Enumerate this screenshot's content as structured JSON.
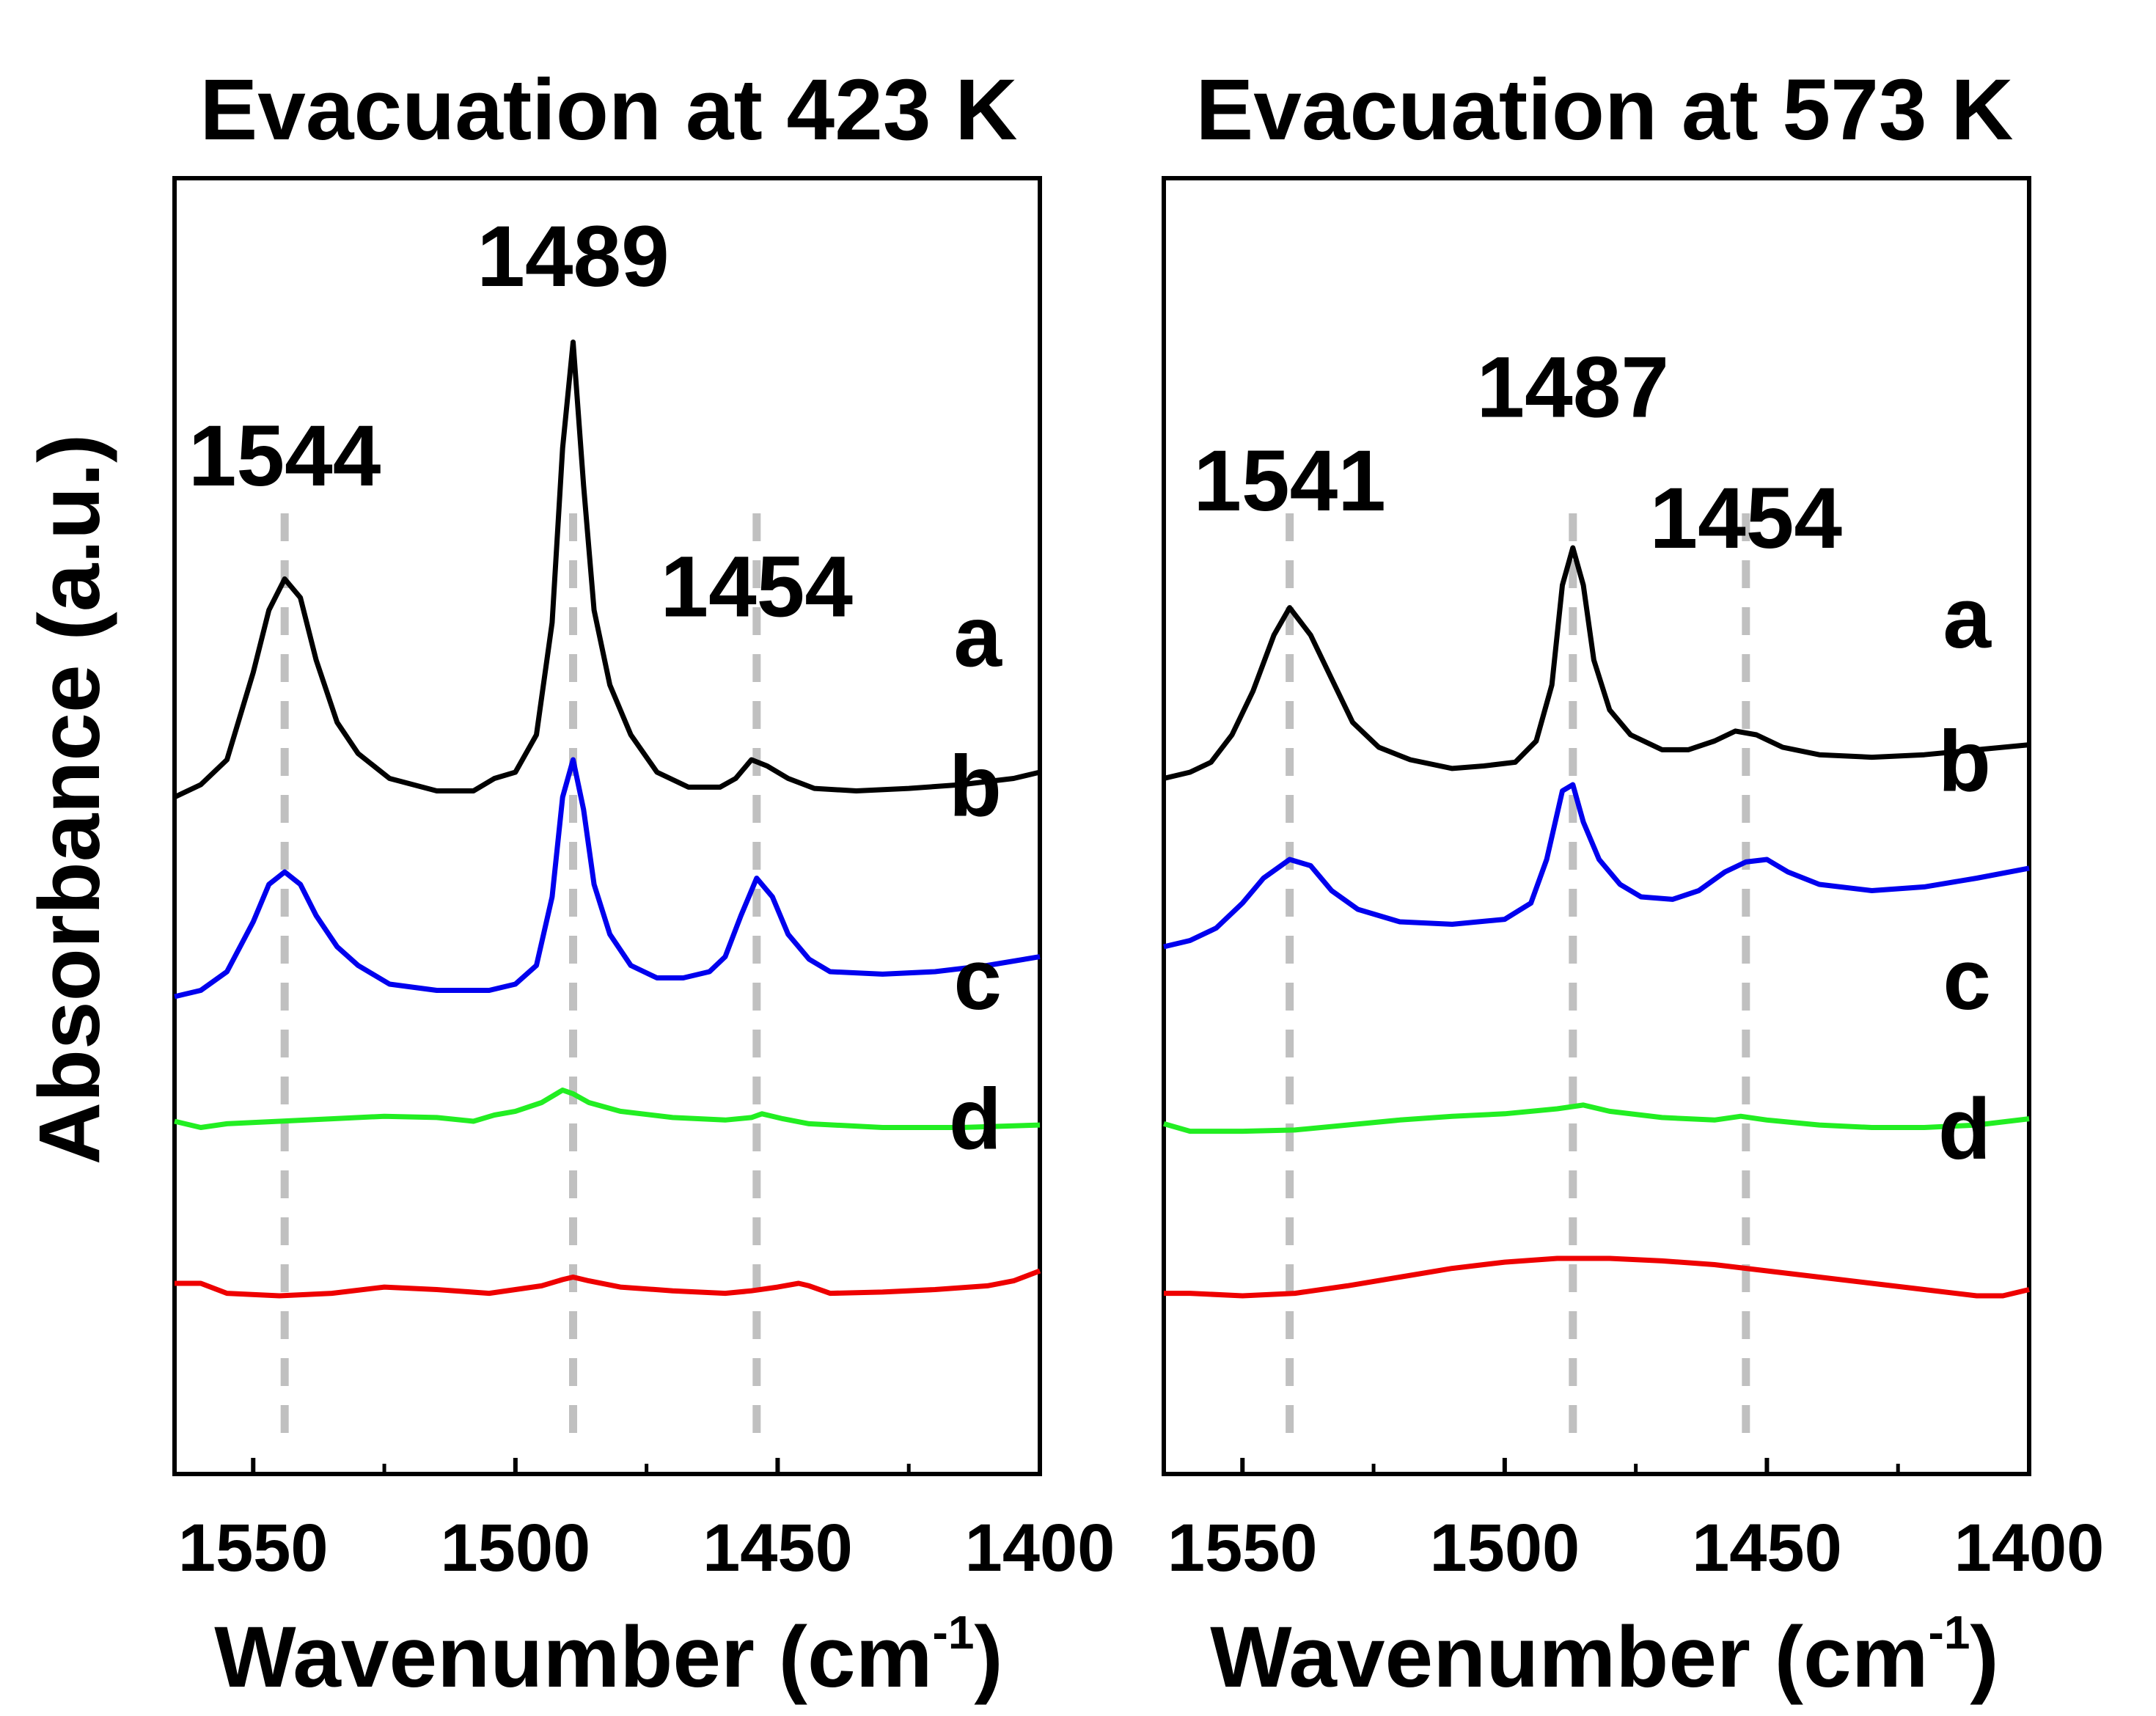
{
  "chart_data": [
    {
      "type": "line",
      "title": "Evacuation at 423 K",
      "xlabel": "Wavenumber (cm",
      "xlabel_sup": "-1",
      "xlabel_close": ")",
      "ylabel": "Absorbance (a.u.)",
      "xlim": [
        1565,
        1400
      ],
      "x_ticks": [
        "1550",
        "1500",
        "1450",
        "1400"
      ],
      "y_ticks_visible": false,
      "peak_labels": [
        {
          "text": "1544",
          "x": 1544,
          "y": 5.4
        },
        {
          "text": "1489",
          "x": 1489,
          "y": 7.0
        },
        {
          "text": "1454",
          "x": 1454,
          "y": 4.35
        }
      ],
      "reference_lines": [
        1544,
        1489,
        1454
      ],
      "series": [
        {
          "name": "a",
          "label": "a",
          "color": "#000000",
          "label_y": 3.95,
          "points": [
            [
              1565,
              2.9
            ],
            [
              1560,
              3.0
            ],
            [
              1555,
              3.2
            ],
            [
              1550,
              3.9
            ],
            [
              1547,
              4.4
            ],
            [
              1544,
              4.65
            ],
            [
              1541,
              4.5
            ],
            [
              1538,
              4.0
            ],
            [
              1534,
              3.5
            ],
            [
              1530,
              3.25
            ],
            [
              1524,
              3.05
            ],
            [
              1515,
              2.95
            ],
            [
              1508,
              2.95
            ],
            [
              1504,
              3.05
            ],
            [
              1500,
              3.1
            ],
            [
              1496,
              3.4
            ],
            [
              1493,
              4.3
            ],
            [
              1491,
              5.7
            ],
            [
              1489,
              6.55
            ],
            [
              1487,
              5.4
            ],
            [
              1485,
              4.4
            ],
            [
              1482,
              3.8
            ],
            [
              1478,
              3.4
            ],
            [
              1473,
              3.1
            ],
            [
              1467,
              2.98
            ],
            [
              1461,
              2.98
            ],
            [
              1458,
              3.05
            ],
            [
              1455,
              3.2
            ],
            [
              1452,
              3.15
            ],
            [
              1448,
              3.05
            ],
            [
              1443,
              2.97
            ],
            [
              1435,
              2.95
            ],
            [
              1425,
              2.97
            ],
            [
              1415,
              3.0
            ],
            [
              1405,
              3.05
            ],
            [
              1400,
              3.1
            ]
          ]
        },
        {
          "name": "b",
          "label": "b",
          "color": "#0000ee",
          "label_y": 2.75,
          "points": [
            [
              1565,
              1.3
            ],
            [
              1560,
              1.35
            ],
            [
              1555,
              1.5
            ],
            [
              1550,
              1.9
            ],
            [
              1547,
              2.2
            ],
            [
              1544,
              2.3
            ],
            [
              1541,
              2.2
            ],
            [
              1538,
              1.95
            ],
            [
              1534,
              1.7
            ],
            [
              1530,
              1.55
            ],
            [
              1524,
              1.4
            ],
            [
              1515,
              1.35
            ],
            [
              1505,
              1.35
            ],
            [
              1500,
              1.4
            ],
            [
              1496,
              1.55
            ],
            [
              1493,
              2.1
            ],
            [
              1491,
              2.9
            ],
            [
              1489,
              3.2
            ],
            [
              1487,
              2.8
            ],
            [
              1485,
              2.2
            ],
            [
              1482,
              1.8
            ],
            [
              1478,
              1.55
            ],
            [
              1473,
              1.45
            ],
            [
              1468,
              1.45
            ],
            [
              1463,
              1.5
            ],
            [
              1460,
              1.62
            ],
            [
              1457,
              1.95
            ],
            [
              1454,
              2.25
            ],
            [
              1451,
              2.1
            ],
            [
              1448,
              1.8
            ],
            [
              1444,
              1.6
            ],
            [
              1440,
              1.5
            ],
            [
              1430,
              1.48
            ],
            [
              1420,
              1.5
            ],
            [
              1410,
              1.55
            ],
            [
              1400,
              1.62
            ]
          ]
        },
        {
          "name": "c",
          "label": "c",
          "color": "#22ee22",
          "label_y": 1.2,
          "points": [
            [
              1565,
              0.3
            ],
            [
              1560,
              0.25
            ],
            [
              1555,
              0.28
            ],
            [
              1545,
              0.3
            ],
            [
              1535,
              0.32
            ],
            [
              1525,
              0.34
            ],
            [
              1515,
              0.33
            ],
            [
              1508,
              0.3
            ],
            [
              1504,
              0.35
            ],
            [
              1500,
              0.38
            ],
            [
              1495,
              0.45
            ],
            [
              1491,
              0.55
            ],
            [
              1489,
              0.52
            ],
            [
              1486,
              0.45
            ],
            [
              1480,
              0.38
            ],
            [
              1470,
              0.33
            ],
            [
              1460,
              0.31
            ],
            [
              1455,
              0.33
            ],
            [
              1453,
              0.36
            ],
            [
              1449,
              0.32
            ],
            [
              1444,
              0.28
            ],
            [
              1430,
              0.25
            ],
            [
              1415,
              0.25
            ],
            [
              1400,
              0.27
            ]
          ]
        },
        {
          "name": "d",
          "label": "d",
          "color": "#ee0000",
          "label_y": 0.08,
          "points": [
            [
              1565,
              -1.0
            ],
            [
              1560,
              -1.0
            ],
            [
              1555,
              -1.08
            ],
            [
              1545,
              -1.1
            ],
            [
              1535,
              -1.08
            ],
            [
              1525,
              -1.03
            ],
            [
              1515,
              -1.05
            ],
            [
              1505,
              -1.08
            ],
            [
              1500,
              -1.05
            ],
            [
              1495,
              -1.02
            ],
            [
              1491,
              -0.97
            ],
            [
              1489,
              -0.95
            ],
            [
              1486,
              -0.98
            ],
            [
              1480,
              -1.03
            ],
            [
              1470,
              -1.06
            ],
            [
              1460,
              -1.08
            ],
            [
              1455,
              -1.06
            ],
            [
              1450,
              -1.03
            ],
            [
              1446,
              -1.0
            ],
            [
              1444,
              -1.02
            ],
            [
              1440,
              -1.08
            ],
            [
              1430,
              -1.07
            ],
            [
              1420,
              -1.05
            ],
            [
              1410,
              -1.02
            ],
            [
              1405,
              -0.98
            ],
            [
              1400,
              -0.9
            ]
          ]
        }
      ]
    },
    {
      "type": "line",
      "title": "Evacuation at 573 K",
      "xlabel": "Wavenumber (cm",
      "xlabel_sup": "-1",
      "xlabel_close": ")",
      "xlim": [
        1565,
        1400
      ],
      "x_ticks": [
        "1550",
        "1500",
        "1450",
        "1400"
      ],
      "y_ticks_visible": false,
      "peak_labels": [
        {
          "text": "1541",
          "x": 1541,
          "y": 5.2
        },
        {
          "text": "1487",
          "x": 1487,
          "y": 5.95
        },
        {
          "text": "1454",
          "x": 1454,
          "y": 4.9
        }
      ],
      "reference_lines": [
        1541,
        1487,
        1454
      ],
      "series": [
        {
          "name": "a",
          "label": "a",
          "color": "#000000",
          "label_y": 4.1,
          "points": [
            [
              1565,
              3.05
            ],
            [
              1560,
              3.1
            ],
            [
              1556,
              3.18
            ],
            [
              1552,
              3.4
            ],
            [
              1548,
              3.75
            ],
            [
              1544,
              4.2
            ],
            [
              1541,
              4.42
            ],
            [
              1537,
              4.2
            ],
            [
              1533,
              3.85
            ],
            [
              1529,
              3.5
            ],
            [
              1524,
              3.3
            ],
            [
              1518,
              3.2
            ],
            [
              1510,
              3.13
            ],
            [
              1504,
              3.15
            ],
            [
              1498,
              3.18
            ],
            [
              1494,
              3.35
            ],
            [
              1491,
              3.8
            ],
            [
              1489,
              4.6
            ],
            [
              1487,
              4.9
            ],
            [
              1485,
              4.6
            ],
            [
              1483,
              4.0
            ],
            [
              1480,
              3.6
            ],
            [
              1476,
              3.4
            ],
            [
              1470,
              3.28
            ],
            [
              1465,
              3.28
            ],
            [
              1460,
              3.35
            ],
            [
              1456,
              3.43
            ],
            [
              1452,
              3.4
            ],
            [
              1447,
              3.3
            ],
            [
              1440,
              3.24
            ],
            [
              1430,
              3.22
            ],
            [
              1420,
              3.24
            ],
            [
              1410,
              3.28
            ],
            [
              1400,
              3.32
            ]
          ]
        },
        {
          "name": "b",
          "label": "b",
          "color": "#0000ee",
          "label_y": 2.95,
          "points": [
            [
              1565,
              1.7
            ],
            [
              1560,
              1.75
            ],
            [
              1555,
              1.85
            ],
            [
              1550,
              2.05
            ],
            [
              1546,
              2.25
            ],
            [
              1541,
              2.4
            ],
            [
              1537,
              2.35
            ],
            [
              1533,
              2.15
            ],
            [
              1528,
              2.0
            ],
            [
              1520,
              1.9
            ],
            [
              1510,
              1.88
            ],
            [
              1500,
              1.92
            ],
            [
              1495,
              2.05
            ],
            [
              1492,
              2.4
            ],
            [
              1489,
              2.95
            ],
            [
              1487,
              3.0
            ],
            [
              1485,
              2.7
            ],
            [
              1482,
              2.4
            ],
            [
              1478,
              2.2
            ],
            [
              1474,
              2.1
            ],
            [
              1468,
              2.08
            ],
            [
              1463,
              2.15
            ],
            [
              1458,
              2.3
            ],
            [
              1454,
              2.38
            ],
            [
              1450,
              2.4
            ],
            [
              1446,
              2.3
            ],
            [
              1440,
              2.2
            ],
            [
              1430,
              2.15
            ],
            [
              1420,
              2.18
            ],
            [
              1410,
              2.25
            ],
            [
              1400,
              2.33
            ]
          ]
        },
        {
          "name": "c",
          "label": "c",
          "color": "#22ee22",
          "label_y": 1.2,
          "points": [
            [
              1565,
              0.28
            ],
            [
              1560,
              0.22
            ],
            [
              1550,
              0.22
            ],
            [
              1540,
              0.23
            ],
            [
              1530,
              0.27
            ],
            [
              1520,
              0.31
            ],
            [
              1510,
              0.34
            ],
            [
              1500,
              0.36
            ],
            [
              1490,
              0.4
            ],
            [
              1485,
              0.43
            ],
            [
              1480,
              0.38
            ],
            [
              1470,
              0.33
            ],
            [
              1460,
              0.31
            ],
            [
              1455,
              0.34
            ],
            [
              1450,
              0.31
            ],
            [
              1440,
              0.27
            ],
            [
              1430,
              0.25
            ],
            [
              1420,
              0.25
            ],
            [
              1410,
              0.27
            ],
            [
              1400,
              0.32
            ]
          ]
        },
        {
          "name": "d",
          "label": "d",
          "color": "#ee0000",
          "label_y": 0.0,
          "points": [
            [
              1565,
              -1.08
            ],
            [
              1560,
              -1.08
            ],
            [
              1550,
              -1.1
            ],
            [
              1540,
              -1.08
            ],
            [
              1530,
              -1.02
            ],
            [
              1520,
              -0.95
            ],
            [
              1510,
              -0.88
            ],
            [
              1500,
              -0.83
            ],
            [
              1490,
              -0.8
            ],
            [
              1480,
              -0.8
            ],
            [
              1470,
              -0.82
            ],
            [
              1460,
              -0.85
            ],
            [
              1450,
              -0.9
            ],
            [
              1440,
              -0.95
            ],
            [
              1430,
              -1.0
            ],
            [
              1420,
              -1.05
            ],
            [
              1410,
              -1.1
            ],
            [
              1405,
              -1.1
            ],
            [
              1400,
              -1.05
            ]
          ]
        }
      ]
    }
  ]
}
